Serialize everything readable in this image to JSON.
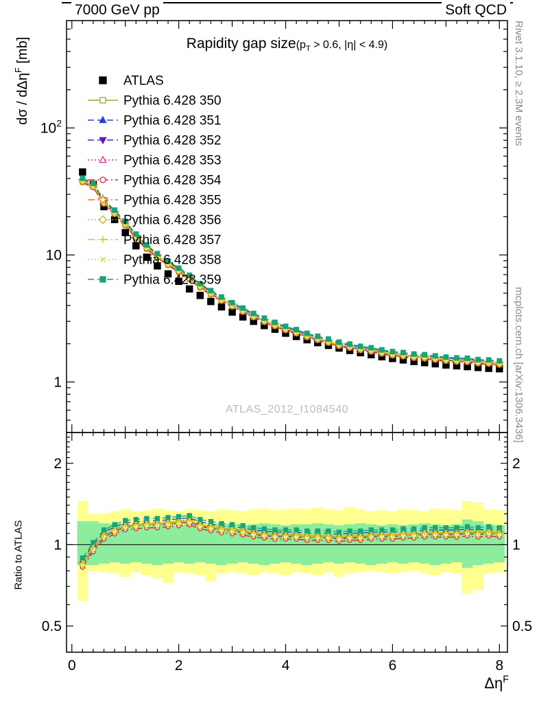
{
  "chart_data": {
    "type": "line",
    "header": {
      "left": "7000 GeV pp",
      "right": "Soft QCD"
    },
    "title": {
      "main": "Rapidity gap size",
      "cuts_pre": "(p",
      "cuts_sub": "T",
      "cuts_post": " > 0.6, |η| < 4.9)"
    },
    "labels": {
      "y_main_pre": "dσ / dΔη",
      "y_main_sup": "F",
      "y_main_post": " [mb]",
      "x_pre": "Δη",
      "x_sup": "F",
      "ratio_y": "Ratio to ATLAS",
      "watermark": "ATLAS_2012_I1084540"
    },
    "side": {
      "top": "Rivet 3.1.10, ≥ 2.3M events",
      "bottom": "mcplots.cern.ch [arXiv:1306.3436]"
    },
    "xlim": [
      -0.1,
      8.15
    ],
    "ylim_main": [
      0.4,
      700
    ],
    "ylim_ratio": [
      0.4,
      2.6
    ],
    "bin_half_width": 0.1,
    "x": [
      0.2,
      0.4,
      0.6,
      0.8,
      1,
      1.2,
      1.4,
      1.6,
      1.8,
      2,
      2.2,
      2.4,
      2.6,
      2.8,
      3,
      3.2,
      3.4,
      3.6,
      3.8,
      4,
      4.2,
      4.4,
      4.6,
      4.8,
      5,
      5.2,
      5.4,
      5.6,
      5.8,
      6,
      6.2,
      6.4,
      6.6,
      6.8,
      7,
      7.2,
      7.4,
      7.6,
      7.8,
      8
    ],
    "atlas": {
      "label": "ATLAS",
      "color": "#000000",
      "marker": "square",
      "filled": true,
      "values": [
        45,
        36,
        24,
        19,
        15,
        11.8,
        9.6,
        8.2,
        7.1,
        6.2,
        5.4,
        4.8,
        4.3,
        3.9,
        3.55,
        3.25,
        3.0,
        2.78,
        2.6,
        2.42,
        2.28,
        2.15,
        2.04,
        1.94,
        1.85,
        1.77,
        1.7,
        1.64,
        1.58,
        1.53,
        1.49,
        1.45,
        1.42,
        1.39,
        1.36,
        1.34,
        1.32,
        1.3,
        1.28,
        1.27
      ]
    },
    "pythia_base_ratio": [
      0.85,
      0.97,
      1.08,
      1.13,
      1.17,
      1.18,
      1.19,
      1.19,
      1.2,
      1.21,
      1.22,
      1.18,
      1.16,
      1.14,
      1.13,
      1.12,
      1.1,
      1.09,
      1.08,
      1.08,
      1.08,
      1.07,
      1.07,
      1.07,
      1.06,
      1.07,
      1.07,
      1.08,
      1.08,
      1.08,
      1.09,
      1.09,
      1.1,
      1.1,
      1.1,
      1.1,
      1.11,
      1.1,
      1.11,
      1.1
    ],
    "series": [
      {
        "label": "Pythia 6.428 350",
        "color": "#a2a42c",
        "marker": "square",
        "filled": false,
        "dash": "",
        "ratio_offset": 1.0
      },
      {
        "label": "Pythia 6.428 351",
        "color": "#2244cc",
        "marker": "triangle-up",
        "filled": true,
        "dash": "9,5",
        "ratio_offset": 1.03
      },
      {
        "label": "Pythia 6.428 352",
        "color": "#5c18c4",
        "marker": "triangle-down",
        "filled": true,
        "dash": "9,5",
        "ratio_offset": 0.99
      },
      {
        "label": "Pythia 6.428 353",
        "color": "#cc2e8a",
        "marker": "triangle-up",
        "filled": false,
        "dash": "2,3",
        "ratio_offset": 1.01
      },
      {
        "label": "Pythia 6.428 354",
        "color": "#dd2222",
        "marker": "circle",
        "filled": false,
        "dash": "10,4,2,4",
        "ratio_offset": 0.97
      },
      {
        "label": "Pythia 6.428 355",
        "color": "#ee7712",
        "marker": "star",
        "filled": false,
        "dash": "10,4,2,4",
        "ratio_offset": 1.0
      },
      {
        "label": "Pythia 6.428 356",
        "color": "#b9b912",
        "marker": "diamond",
        "filled": false,
        "dash": "2,3",
        "ratio_offset": 0.99
      },
      {
        "label": "Pythia 6.428 357",
        "color": "#cfc520",
        "marker": "plus",
        "filled": false,
        "dash": "10,4,2,4",
        "ratio_offset": 1.005
      },
      {
        "label": "Pythia 6.428 358",
        "color": "#d9d926",
        "marker": "cross",
        "filled": false,
        "dash": "2,3",
        "ratio_offset": 1.015
      },
      {
        "label": "Pythia 6.428 359",
        "color": "#17a47a",
        "marker": "square",
        "filled": true,
        "dash": "9,5",
        "ratio_offset": 1.05
      }
    ],
    "bands": {
      "yellow_color": "#ffff8f",
      "green_color": "#8ced9c",
      "yellow_hi": [
        1.45,
        1.3,
        1.31,
        1.33,
        1.35,
        1.33,
        1.34,
        1.36,
        1.34,
        1.33,
        1.35,
        1.34,
        1.33,
        1.35,
        1.34,
        1.33,
        1.35,
        1.36,
        1.34,
        1.35,
        1.36,
        1.35,
        1.37,
        1.35,
        1.34,
        1.38,
        1.35,
        1.33,
        1.34,
        1.33,
        1.35,
        1.34,
        1.33,
        1.36,
        1.35,
        1.34,
        1.45,
        1.43,
        1.35,
        1.34
      ],
      "yellow_lo": [
        0.62,
        0.8,
        0.79,
        0.78,
        0.76,
        0.79,
        0.77,
        0.75,
        0.72,
        0.79,
        0.78,
        0.77,
        0.73,
        0.78,
        0.79,
        0.78,
        0.77,
        0.79,
        0.78,
        0.77,
        0.79,
        0.78,
        0.77,
        0.79,
        0.76,
        0.78,
        0.79,
        0.8,
        0.79,
        0.78,
        0.79,
        0.8,
        0.78,
        0.77,
        0.79,
        0.78,
        0.66,
        0.68,
        0.78,
        0.79
      ],
      "green_hi": [
        1.22,
        1.22,
        1.2,
        1.19,
        1.19,
        1.18,
        1.19,
        1.2,
        1.19,
        1.18,
        1.19,
        1.18,
        1.19,
        1.2,
        1.19,
        1.18,
        1.19,
        1.2,
        1.19,
        1.18,
        1.19,
        1.19,
        1.2,
        1.19,
        1.18,
        1.19,
        1.2,
        1.19,
        1.18,
        1.19,
        1.18,
        1.19,
        1.2,
        1.19,
        1.18,
        1.19,
        1.24,
        1.22,
        1.19,
        1.18
      ],
      "green_lo": [
        0.84,
        0.84,
        0.85,
        0.86,
        0.85,
        0.86,
        0.85,
        0.84,
        0.85,
        0.86,
        0.85,
        0.86,
        0.85,
        0.84,
        0.85,
        0.86,
        0.85,
        0.84,
        0.85,
        0.86,
        0.85,
        0.84,
        0.85,
        0.86,
        0.85,
        0.86,
        0.85,
        0.84,
        0.85,
        0.86,
        0.85,
        0.86,
        0.85,
        0.84,
        0.85,
        0.86,
        0.82,
        0.84,
        0.85,
        0.86
      ]
    },
    "axes": {
      "x_major": [
        0,
        2,
        4,
        6,
        8
      ],
      "x_mid": [
        1,
        3,
        5,
        7
      ],
      "x_minor_step": 0.2,
      "y_main_major": [
        {
          "value": 1,
          "base": "1",
          "exp": ""
        },
        {
          "value": 10,
          "base": "10",
          "exp": ""
        },
        {
          "value": 100,
          "base": "10",
          "exp": "2"
        }
      ],
      "y_ratio_major": [
        {
          "value": 0.5,
          "label": "0.5"
        },
        {
          "value": 1,
          "label": "1"
        },
        {
          "value": 2,
          "label": "2"
        }
      ]
    }
  }
}
